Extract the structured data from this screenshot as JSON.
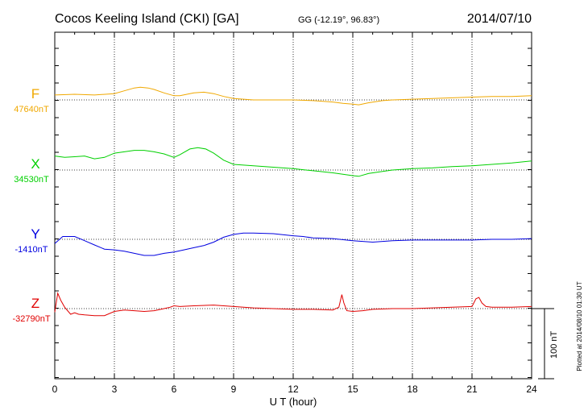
{
  "header": {
    "station": "Cocos Keeling Island (CKI)  [GA]",
    "coords": "GG (-12.19°,  96.83°)",
    "date": "2014/07/10"
  },
  "side_note": "Plotted at 2014/08/10 01:30 UT",
  "scale_label": "100 nT",
  "chart_data": {
    "type": "line",
    "title": "Cocos Keeling Island (CKI)  [GA]",
    "xlabel": "U T (hour)",
    "x_ticks": [
      "0",
      "3",
      "6",
      "9",
      "12",
      "15",
      "18",
      "21",
      "24"
    ],
    "xlim": [
      0,
      24
    ],
    "grid": true,
    "scale_bar_nT": 100,
    "series": [
      {
        "name": "F",
        "baseline_label": "47640nT",
        "color": "#f0a800",
        "x": [
          0,
          1,
          2,
          3,
          3.5,
          4,
          4.3,
          4.7,
          5,
          5.5,
          6,
          6.3,
          7,
          7.5,
          8,
          8.5,
          9,
          10,
          11,
          12,
          13,
          14,
          14.5,
          15,
          15.3,
          15.8,
          16.5,
          17,
          18,
          19,
          20,
          21,
          22,
          23,
          24
        ],
        "y": [
          7,
          8,
          7,
          9,
          13,
          17,
          18,
          17,
          15,
          10,
          6,
          6,
          10,
          11,
          9,
          5,
          2,
          0,
          0,
          0,
          -1,
          -3,
          -5,
          -6,
          -7,
          -4,
          -1,
          0,
          1,
          2,
          3,
          4,
          5,
          5,
          6
        ]
      },
      {
        "name": "X",
        "baseline_label": "34530nT",
        "color": "#00d000",
        "x": [
          0,
          0.5,
          1,
          1.5,
          2,
          2.5,
          3,
          3.5,
          4,
          4.5,
          5,
          5.5,
          6,
          6.3,
          6.8,
          7.2,
          7.6,
          8,
          8.5,
          9,
          10,
          11,
          12,
          13,
          14,
          14.5,
          15,
          15.3,
          15.8,
          16.5,
          17,
          18,
          19,
          20,
          21,
          22,
          23,
          24
        ],
        "y": [
          20,
          18,
          19,
          20,
          16,
          18,
          24,
          26,
          28,
          28,
          26,
          23,
          18,
          22,
          30,
          32,
          30,
          24,
          14,
          8,
          6,
          4,
          2,
          -1,
          -4,
          -6,
          -8,
          -9,
          -5,
          -2,
          0,
          2,
          3,
          5,
          6,
          8,
          10,
          13
        ]
      },
      {
        "name": "Y",
        "baseline_label": "-1410nT",
        "color": "#0000e0",
        "x": [
          0,
          0.4,
          1,
          1.5,
          2,
          2.5,
          3,
          3.5,
          4,
          4.5,
          5,
          5.5,
          6,
          6.5,
          7,
          7.5,
          8,
          8.5,
          9,
          9.5,
          10,
          11,
          12,
          12.5,
          13,
          14,
          15,
          16,
          17,
          18,
          19,
          20,
          21,
          22,
          23,
          24
        ],
        "y": [
          -6,
          4,
          4,
          -2,
          -8,
          -14,
          -15,
          -17,
          -20,
          -23,
          -23,
          -20,
          -18,
          -15,
          -12,
          -9,
          -4,
          3,
          7,
          9,
          9,
          8,
          5,
          4,
          2,
          1,
          -2,
          -4,
          -2,
          -1,
          -1,
          -1,
          -1,
          0,
          0,
          1
        ]
      },
      {
        "name": "Z",
        "baseline_label": "-32790nT",
        "color": "#e00000",
        "x": [
          0,
          0.15,
          0.3,
          0.5,
          0.8,
          1,
          1.2,
          1.5,
          2,
          2.5,
          3,
          3.5,
          4,
          4.5,
          5,
          5.5,
          5.8,
          6,
          6.3,
          7,
          8,
          9,
          9.5,
          10,
          11,
          12,
          13,
          14,
          14.3,
          14.45,
          14.55,
          14.7,
          15,
          15.5,
          16,
          17,
          18,
          19,
          20,
          21,
          21.2,
          21.35,
          21.5,
          21.7,
          22,
          23,
          24
        ],
        "y": [
          -5,
          22,
          12,
          2,
          -8,
          -6,
          -8,
          -9,
          -10,
          -10,
          -4,
          -2,
          -3,
          -4,
          -3,
          0,
          2,
          4,
          3,
          4,
          5,
          3,
          2,
          1,
          0,
          -1,
          -1,
          -2,
          2,
          20,
          8,
          -3,
          -4,
          -3,
          -1,
          0,
          0,
          1,
          2,
          3,
          14,
          16,
          8,
          3,
          2,
          2,
          3
        ]
      }
    ]
  }
}
